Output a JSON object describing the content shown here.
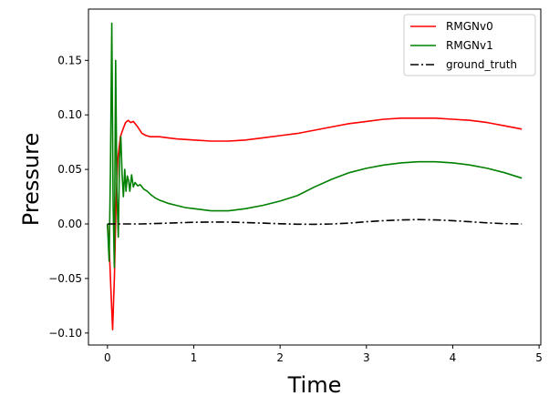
{
  "chart_data": {
    "type": "line",
    "xlabel": "Time",
    "ylabel": "Pressure",
    "xlim": [
      -0.22,
      5.02
    ],
    "ylim": [
      -0.111,
      0.197
    ],
    "xticks": [
      0,
      1,
      2,
      3,
      4,
      5
    ],
    "yticks": [
      -0.1,
      -0.05,
      0.0,
      0.05,
      0.1,
      0.15
    ],
    "xtick_labels": [
      "0",
      "1",
      "2",
      "3",
      "4",
      "5"
    ],
    "ytick_labels": [
      "−0.10",
      "−0.05",
      "0.00",
      "0.05",
      "0.10",
      "0.15"
    ],
    "grid": false,
    "legend_position": "top-right",
    "series": [
      {
        "name": "RMGNv0",
        "color": "#ff0000",
        "dash": "solid",
        "x": [
          0,
          0.02,
          0.04,
          0.06,
          0.08,
          0.1,
          0.12,
          0.15,
          0.18,
          0.21,
          0.24,
          0.27,
          0.3,
          0.35,
          0.4,
          0.45,
          0.5,
          0.6,
          0.7,
          0.8,
          1.0,
          1.2,
          1.4,
          1.6,
          1.8,
          2.0,
          2.2,
          2.4,
          2.6,
          2.8,
          3.0,
          3.2,
          3.4,
          3.6,
          3.8,
          4.0,
          4.2,
          4.4,
          4.6,
          4.8
        ],
        "y": [
          0.0,
          -0.02,
          -0.06,
          -0.097,
          -0.05,
          0.02,
          0.06,
          0.08,
          0.087,
          0.093,
          0.095,
          0.093,
          0.094,
          0.089,
          0.083,
          0.081,
          0.08,
          0.08,
          0.079,
          0.078,
          0.077,
          0.076,
          0.076,
          0.077,
          0.079,
          0.081,
          0.083,
          0.086,
          0.089,
          0.092,
          0.094,
          0.096,
          0.097,
          0.097,
          0.097,
          0.096,
          0.095,
          0.093,
          0.09,
          0.087
        ]
      },
      {
        "name": "RMGNv1",
        "color": "#008000",
        "dash": "solid",
        "x": [
          0,
          0.02,
          0.035,
          0.05,
          0.065,
          0.08,
          0.095,
          0.11,
          0.125,
          0.14,
          0.155,
          0.17,
          0.185,
          0.2,
          0.215,
          0.23,
          0.245,
          0.26,
          0.28,
          0.3,
          0.32,
          0.35,
          0.38,
          0.42,
          0.46,
          0.5,
          0.55,
          0.6,
          0.7,
          0.8,
          0.9,
          1.0,
          1.2,
          1.4,
          1.6,
          1.8,
          2.0,
          2.2,
          2.4,
          2.6,
          2.8,
          3.0,
          3.2,
          3.4,
          3.6,
          3.8,
          4.0,
          4.2,
          4.4,
          4.6,
          4.8
        ],
        "y": [
          0.0,
          -0.034,
          0.05,
          0.184,
          0.02,
          -0.04,
          0.15,
          0.03,
          -0.012,
          0.06,
          0.08,
          0.045,
          0.025,
          0.05,
          0.03,
          0.044,
          0.04,
          0.03,
          0.045,
          0.034,
          0.038,
          0.035,
          0.036,
          0.032,
          0.03,
          0.027,
          0.024,
          0.022,
          0.019,
          0.017,
          0.015,
          0.014,
          0.012,
          0.012,
          0.014,
          0.017,
          0.021,
          0.026,
          0.034,
          0.041,
          0.047,
          0.051,
          0.054,
          0.056,
          0.057,
          0.057,
          0.056,
          0.054,
          0.051,
          0.047,
          0.042
        ]
      },
      {
        "name": "ground_truth",
        "color": "#000000",
        "dash": "dashdot",
        "x": [
          0,
          0.2,
          0.4,
          0.6,
          0.8,
          1.0,
          1.2,
          1.4,
          1.6,
          1.8,
          2.0,
          2.2,
          2.4,
          2.6,
          2.8,
          3.0,
          3.2,
          3.4,
          3.6,
          3.8,
          4.0,
          4.2,
          4.4,
          4.6,
          4.8
        ],
        "y": [
          0.0,
          0.0,
          0.0,
          0.0005,
          0.001,
          0.0015,
          0.0018,
          0.0017,
          0.0013,
          0.0008,
          0.0002,
          -0.0002,
          -0.0003,
          0.0,
          0.0008,
          0.002,
          0.003,
          0.0037,
          0.004,
          0.0037,
          0.003,
          0.002,
          0.001,
          0.0003,
          0.0
        ]
      }
    ]
  }
}
